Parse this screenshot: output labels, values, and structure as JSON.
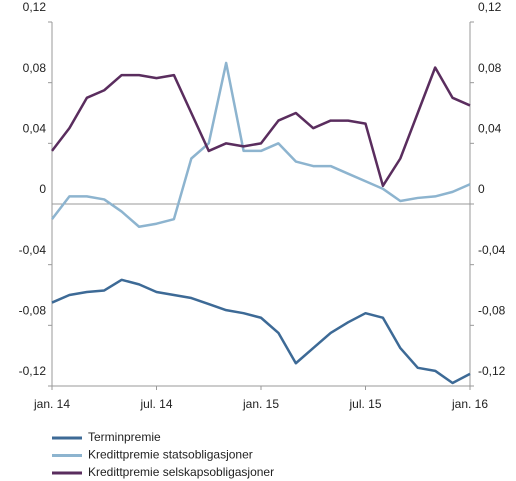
{
  "chart_data": {
    "type": "line",
    "x": [
      0,
      1,
      2,
      3,
      4,
      5,
      6,
      7,
      8,
      9,
      10,
      11,
      12,
      13,
      14,
      15,
      16,
      17,
      18,
      19,
      20,
      21,
      22,
      23,
      24
    ],
    "xlim": [
      0,
      24
    ],
    "xticks": [
      {
        "value": 0,
        "label": "jan. 14"
      },
      {
        "value": 6,
        "label": "jul. 14"
      },
      {
        "value": 12,
        "label": "jan. 15"
      },
      {
        "value": 18,
        "label": "jul. 15"
      },
      {
        "value": 24,
        "label": "jan. 16"
      }
    ],
    "ylim": [
      -0.12,
      0.12
    ],
    "yticks": [
      {
        "value": -0.12,
        "label": "-0,12"
      },
      {
        "value": -0.08,
        "label": "-0,08"
      },
      {
        "value": -0.04,
        "label": "-0,04"
      },
      0,
      {
        "value": 0.04,
        "label": "0,04"
      },
      {
        "value": 0.08,
        "label": "0,08"
      },
      {
        "value": 0.12,
        "label": "0,12"
      }
    ],
    "y2lim": [
      -0.12,
      0.12
    ],
    "y2ticks": [
      {
        "value": -0.12,
        "label": "-0,12"
      },
      {
        "value": -0.08,
        "label": "-0,08"
      },
      {
        "value": -0.04,
        "label": "-0,04"
      },
      0,
      {
        "value": 0.04,
        "label": "0,04"
      },
      {
        "value": 0.08,
        "label": "0,08"
      },
      {
        "value": 0.12,
        "label": "0,12"
      }
    ],
    "series": [
      {
        "name": "Terminpremie",
        "color": "#3d6a96",
        "values": [
          -0.065,
          -0.06,
          -0.058,
          -0.057,
          -0.05,
          -0.053,
          -0.058,
          -0.06,
          -0.062,
          -0.066,
          -0.07,
          -0.072,
          -0.075,
          -0.085,
          -0.105,
          -0.095,
          -0.085,
          -0.078,
          -0.072,
          -0.075,
          -0.095,
          -0.108,
          -0.11,
          -0.118,
          -0.112
        ]
      },
      {
        "name": "Kredittpremie statsobligasjoner",
        "color": "#8db4cf",
        "values": [
          -0.01,
          0.005,
          0.005,
          0.003,
          -0.005,
          -0.015,
          -0.013,
          -0.01,
          0.03,
          0.04,
          0.093,
          0.035,
          0.035,
          0.04,
          0.028,
          0.025,
          0.025,
          0.02,
          0.015,
          0.01,
          0.002,
          0.004,
          0.005,
          0.008,
          0.013
        ]
      },
      {
        "name": "Kredittpremie selskapsobligasjoner",
        "color": "#5a2d5e",
        "values": [
          0.035,
          0.05,
          0.07,
          0.075,
          0.085,
          0.085,
          0.083,
          0.085,
          0.06,
          0.035,
          0.04,
          0.038,
          0.04,
          0.055,
          0.06,
          0.05,
          0.055,
          0.055,
          0.053,
          0.012,
          0.03,
          0.06,
          0.09,
          0.07,
          0.065
        ]
      }
    ]
  }
}
